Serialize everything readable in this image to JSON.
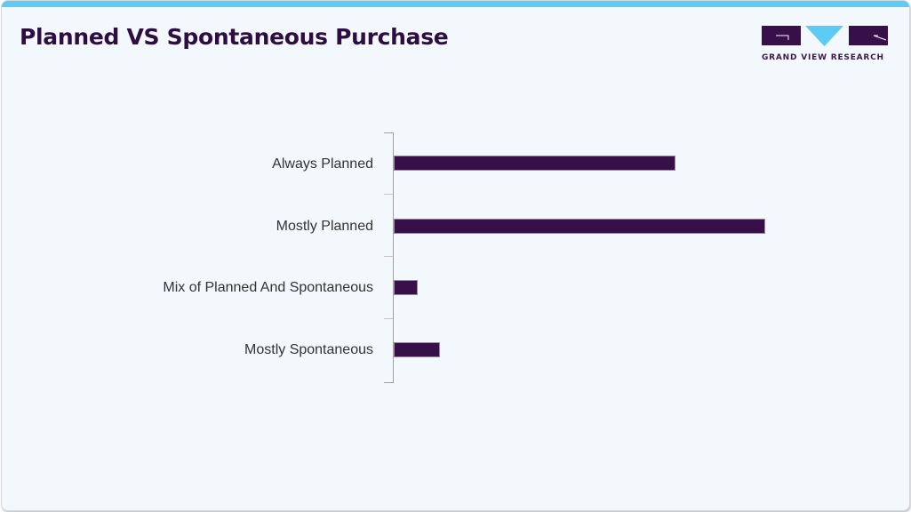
{
  "header": {
    "title": "Planned VS Spontaneous Purchase",
    "accent_color": "#5ecbf5"
  },
  "logo": {
    "text": "GRAND VIEW RESEARCH",
    "primary_color": "#37104a",
    "secondary_color": "#5ecbf5"
  },
  "chart_data": {
    "type": "bar",
    "orientation": "horizontal",
    "title": "Planned VS Spontaneous Purchase",
    "xlabel": "",
    "ylabel": "",
    "categories": [
      "Always Planned",
      "Mostly Planned",
      "Mix of Planned And Spontaneous",
      "Mostly Spontaneous"
    ],
    "values": [
      317,
      418,
      27,
      52
    ],
    "value_note": "No numeric axis or data labels shown; values are relative bar lengths in pixels",
    "bar_color": "#37104a",
    "grid": false,
    "legend": "none"
  }
}
